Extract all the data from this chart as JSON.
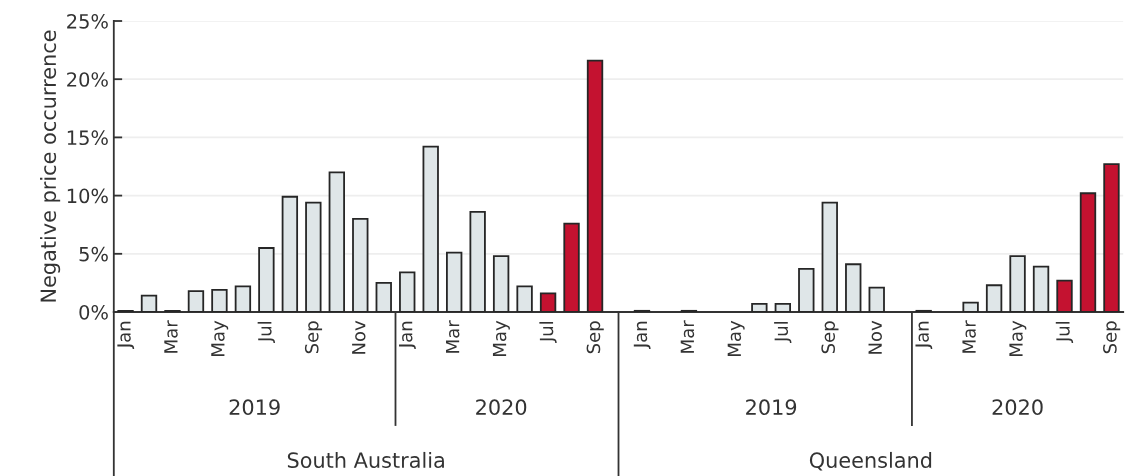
{
  "chart_data": {
    "type": "bar",
    "ylabel": "Negative price occurrence",
    "categories": [
      "Jan",
      null,
      "Mar",
      null,
      "May",
      null,
      "Jul",
      null,
      "Sep",
      null,
      "Nov",
      null,
      "Jan",
      null,
      "Mar",
      null,
      "May",
      null,
      "Jul",
      null,
      "Sep",
      "Jan",
      null,
      "Mar",
      null,
      "May",
      null,
      "Jul",
      null,
      "Sep",
      null,
      "Nov",
      null,
      "Jan",
      null,
      "Mar",
      null,
      "May",
      null,
      "Jul",
      null,
      "Sep"
    ],
    "values": [
      0.1,
      1.4,
      0.1,
      1.8,
      1.9,
      2.2,
      5.5,
      9.9,
      9.4,
      12.0,
      8.0,
      2.5,
      3.4,
      14.2,
      5.1,
      8.6,
      4.8,
      2.2,
      1.6,
      7.6,
      21.6,
      0.1,
      0,
      0.1,
      0,
      0,
      0.7,
      0.7,
      3.7,
      9.4,
      4.1,
      2.1,
      0,
      0.1,
      0,
      0.8,
      2.3,
      4.8,
      3.9,
      2.7,
      10.2,
      12.7
    ],
    "colors": [
      "#dfe6e8",
      "#dfe6e8",
      "#dfe6e8",
      "#dfe6e8",
      "#dfe6e8",
      "#dfe6e8",
      "#dfe6e8",
      "#dfe6e8",
      "#dfe6e8",
      "#dfe6e8",
      "#dfe6e8",
      "#dfe6e8",
      "#dfe6e8",
      "#dfe6e8",
      "#dfe6e8",
      "#dfe6e8",
      "#dfe6e8",
      "#dfe6e8",
      "#c41230",
      "#c41230",
      "#c41230",
      "#dfe6e8",
      "#dfe6e8",
      "#dfe6e8",
      "#dfe6e8",
      "#dfe6e8",
      "#dfe6e8",
      "#dfe6e8",
      "#dfe6e8",
      "#dfe6e8",
      "#dfe6e8",
      "#dfe6e8",
      "#dfe6e8",
      "#dfe6e8",
      "#dfe6e8",
      "#dfe6e8",
      "#dfe6e8",
      "#dfe6e8",
      "#dfe6e8",
      "#c41230",
      "#c41230",
      "#c41230"
    ],
    "ylim": [
      0,
      25
    ],
    "yticks": [
      {
        "value": 0,
        "label": "0%"
      },
      {
        "value": 5,
        "label": "5%"
      },
      {
        "value": 10,
        "label": "10%"
      },
      {
        "value": 15,
        "label": "15%"
      },
      {
        "value": 20,
        "label": "20%"
      },
      {
        "value": 25,
        "label": "25%"
      }
    ],
    "grid": "y",
    "annotations": [
      "2019",
      "2020",
      "2019",
      "2020",
      "South Australia",
      "Queensland"
    ]
  }
}
